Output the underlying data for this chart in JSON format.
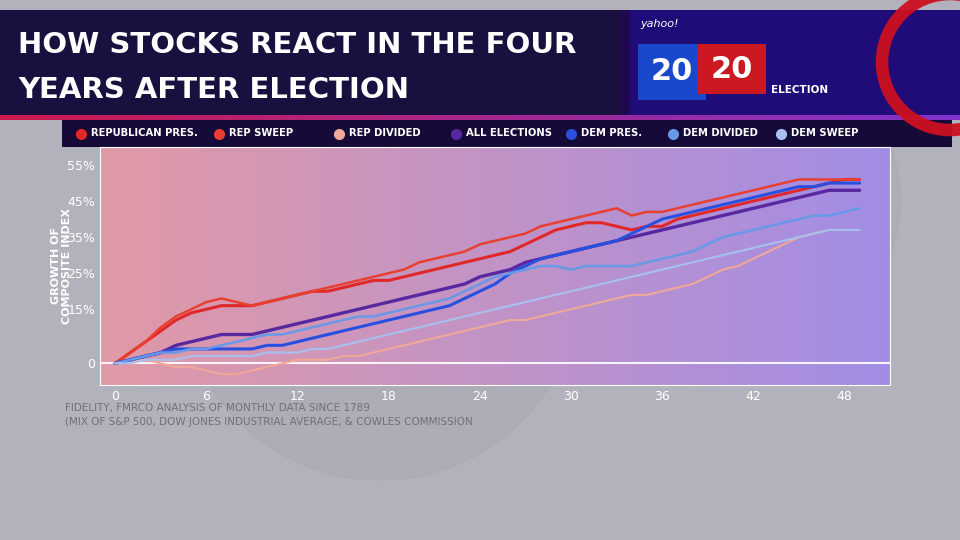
{
  "title_line1": "HOW STOCKS REACT IN THE FOUR",
  "title_line2": "YEARS AFTER ELECTION",
  "source_text": "FIDELITY, FMRCO ANALYSIS OF MONTHLY DATA SINCE 1789\n(MIX OF S&P 500, DOW JONES INDUSTRIAL AVERAGE, & COWLES COMMISSION",
  "ylabel": "GROWTH OF\nCOMPOSITE INDEX",
  "xticks": [
    0,
    6,
    12,
    18,
    24,
    30,
    36,
    42,
    48
  ],
  "ytick_labels": [
    "0",
    "15%",
    "25%",
    "35%",
    "45%",
    "55%"
  ],
  "ytick_vals": [
    0,
    15,
    25,
    35,
    45,
    55
  ],
  "ylim": [
    -6,
    60
  ],
  "xlim": [
    -1,
    51
  ],
  "bg_outer": "#b2b2bc",
  "title_bg": "#1a1040",
  "legend_bg": "#160a38",
  "series": {
    "republican_pres": {
      "label": "REPUBLICAN PRES.",
      "color": "#e02828",
      "lw": 2.2,
      "y": [
        0,
        3,
        6,
        9,
        12,
        14,
        15,
        16,
        16,
        16,
        17,
        18,
        19,
        20,
        20,
        21,
        22,
        23,
        23,
        24,
        25,
        26,
        27,
        28,
        29,
        30,
        31,
        33,
        35,
        37,
        38,
        39,
        39,
        38,
        37,
        38,
        38,
        40,
        41,
        42,
        43,
        44,
        45,
        46,
        47,
        48,
        49,
        50,
        51,
        51
      ]
    },
    "rep_sweep": {
      "label": "REP SWEEP",
      "color": "#e84030",
      "lw": 1.8,
      "y": [
        0,
        3,
        6,
        10,
        13,
        15,
        17,
        18,
        17,
        16,
        17,
        18,
        19,
        20,
        21,
        22,
        23,
        24,
        25,
        26,
        28,
        29,
        30,
        31,
        33,
        34,
        35,
        36,
        38,
        39,
        40,
        41,
        42,
        43,
        41,
        42,
        42,
        43,
        44,
        45,
        46,
        47,
        48,
        49,
        50,
        51,
        51,
        51,
        51,
        51
      ]
    },
    "rep_divided": {
      "label": "REP DIVIDED",
      "color": "#f0a898",
      "lw": 1.5,
      "y": [
        0,
        1,
        1,
        0,
        -1,
        -1,
        -2,
        -3,
        -3,
        -2,
        -1,
        0,
        1,
        1,
        1,
        2,
        2,
        3,
        4,
        5,
        6,
        7,
        8,
        9,
        10,
        11,
        12,
        12,
        13,
        14,
        15,
        16,
        17,
        18,
        19,
        19,
        20,
        21,
        22,
        24,
        26,
        27,
        29,
        31,
        33,
        35,
        36,
        37,
        37,
        37
      ]
    },
    "all_elections": {
      "label": "ALL ELECTIONS",
      "color": "#5828a0",
      "lw": 2.4,
      "y": [
        0,
        1,
        2,
        3,
        5,
        6,
        7,
        8,
        8,
        8,
        9,
        10,
        11,
        12,
        13,
        14,
        15,
        16,
        17,
        18,
        19,
        20,
        21,
        22,
        24,
        25,
        26,
        28,
        29,
        30,
        31,
        32,
        33,
        34,
        35,
        36,
        37,
        38,
        39,
        40,
        41,
        42,
        43,
        44,
        45,
        46,
        47,
        48,
        48,
        48
      ]
    },
    "dem_pres": {
      "label": "DEM PRES.",
      "color": "#2850e0",
      "lw": 2.2,
      "y": [
        0,
        1,
        2,
        3,
        4,
        4,
        4,
        4,
        4,
        4,
        5,
        5,
        6,
        7,
        8,
        9,
        10,
        11,
        12,
        13,
        14,
        15,
        16,
        18,
        20,
        22,
        25,
        27,
        29,
        30,
        31,
        32,
        33,
        34,
        36,
        38,
        40,
        41,
        42,
        43,
        44,
        45,
        46,
        47,
        48,
        49,
        49,
        50,
        50,
        50
      ]
    },
    "dem_divided": {
      "label": "DEM DIVIDED",
      "color": "#6898e8",
      "lw": 1.8,
      "y": [
        0,
        1,
        2,
        3,
        3,
        4,
        4,
        5,
        6,
        7,
        8,
        8,
        9,
        10,
        11,
        12,
        13,
        13,
        14,
        15,
        16,
        17,
        18,
        20,
        22,
        24,
        25,
        26,
        27,
        27,
        26,
        27,
        27,
        27,
        27,
        28,
        29,
        30,
        31,
        33,
        35,
        36,
        37,
        38,
        39,
        40,
        41,
        41,
        42,
        43
      ]
    },
    "dem_sweep": {
      "label": "DEM SWEEP",
      "color": "#a8c0f0",
      "lw": 1.5,
      "y": [
        0,
        0,
        1,
        1,
        1,
        2,
        2,
        2,
        2,
        2,
        3,
        3,
        3,
        4,
        4,
        5,
        6,
        7,
        8,
        9,
        10,
        11,
        12,
        13,
        14,
        15,
        16,
        17,
        18,
        19,
        20,
        21,
        22,
        23,
        24,
        25,
        26,
        27,
        28,
        29,
        30,
        31,
        32,
        33,
        34,
        35,
        36,
        37,
        37,
        37
      ]
    }
  },
  "legend_items": [
    "republican_pres",
    "rep_sweep",
    "rep_divided",
    "all_elections",
    "dem_pres",
    "dem_divided",
    "dem_sweep"
  ]
}
